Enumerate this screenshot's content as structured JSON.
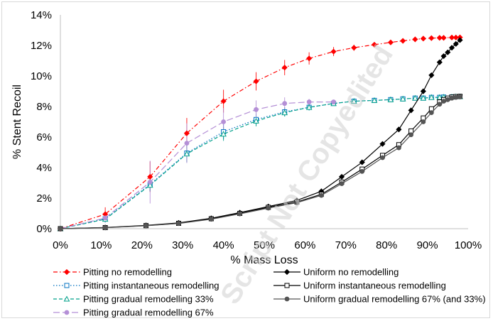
{
  "watermark": "Script Not Copyedited",
  "chart_data": {
    "type": "line",
    "title": "",
    "xlabel": "% Mass Loss",
    "ylabel": "% Stent Recoil",
    "xlim": [
      0,
      100
    ],
    "ylim": [
      0,
      14
    ],
    "x_ticks": [
      "0%",
      "10%",
      "20%",
      "30%",
      "40%",
      "50%",
      "60%",
      "70%",
      "80%",
      "90%",
      "100%"
    ],
    "y_ticks": [
      "0%",
      "2%",
      "4%",
      "6%",
      "8%",
      "10%",
      "12%",
      "14%"
    ],
    "grid": false,
    "legend_position": "bottom",
    "series": [
      {
        "name": "Pitting no remodelling",
        "color": "#ff0000",
        "dash": "dashdot",
        "marker": "diamond-filled",
        "x": [
          0,
          11,
          22,
          31,
          40,
          48,
          55,
          61,
          67,
          72,
          77,
          81,
          84,
          87,
          89,
          91,
          93,
          94,
          96,
          97,
          98
        ],
        "y": [
          0,
          0.95,
          3.4,
          6.25,
          8.35,
          9.65,
          10.55,
          11.15,
          11.6,
          11.85,
          12.05,
          12.2,
          12.3,
          12.4,
          12.45,
          12.48,
          12.5,
          12.5,
          12.52,
          12.52,
          12.53
        ],
        "error": [
          0,
          0.45,
          1.0,
          1.0,
          0.75,
          0.6,
          0.5,
          0.4,
          0.3,
          0.2,
          0.15,
          0.1,
          0.1,
          0.1,
          0.05,
          0.05,
          0.05,
          0.05,
          0.05,
          0.05,
          0.05
        ]
      },
      {
        "name": "Pitting instantaneous remodelling",
        "color": "#0070c0",
        "dash": "dotted",
        "marker": "square-open",
        "x": [
          0,
          11,
          22,
          31,
          40,
          48,
          55,
          61,
          67,
          72,
          77,
          81,
          84,
          87,
          89,
          91,
          93,
          94,
          96,
          97,
          98
        ],
        "y": [
          0,
          0.65,
          2.9,
          4.95,
          6.35,
          7.15,
          7.65,
          7.95,
          8.2,
          8.35,
          8.4,
          8.45,
          8.5,
          8.55,
          8.55,
          8.6,
          8.6,
          8.62,
          8.63,
          8.65,
          8.65
        ],
        "error": [
          0,
          0.25,
          0.45,
          0.6,
          0.5,
          0.4,
          0.3,
          0.2,
          0.15,
          0.1,
          0.05,
          0.05,
          0.05,
          0.05,
          0.05,
          0.05,
          0.05,
          0.05,
          0.05,
          0.05,
          0.05
        ]
      },
      {
        "name": "Pitting gradual remodelling 33%",
        "color": "#00a08a",
        "dash": "dashed",
        "marker": "triangle-open",
        "x": [
          0,
          11,
          22,
          31,
          40,
          48,
          55,
          61,
          67,
          72,
          77,
          81,
          84,
          87,
          89,
          91,
          93,
          94,
          96,
          97,
          98
        ],
        "y": [
          0,
          0.62,
          2.85,
          4.9,
          6.2,
          7.05,
          7.6,
          7.95,
          8.2,
          8.35,
          8.4,
          8.45,
          8.5,
          8.55,
          8.55,
          8.6,
          8.6,
          8.62,
          8.63,
          8.65,
          8.65
        ],
        "error": [
          0,
          0.2,
          0.4,
          0.55,
          0.45,
          0.35,
          0.25,
          0.2,
          0.15,
          0.1,
          0.05,
          0.05,
          0.05,
          0.05,
          0.05,
          0.05,
          0.05,
          0.05,
          0.05,
          0.05,
          0.05
        ]
      },
      {
        "name": "Pitting gradual remodelling 67%",
        "color": "#b48fd6",
        "dash": "longdash",
        "marker": "circle-filled",
        "x": [
          0,
          11,
          22,
          31,
          40,
          48,
          55,
          61,
          67
        ],
        "y": [
          0,
          0.7,
          3.05,
          5.6,
          7.0,
          7.8,
          8.2,
          8.3,
          8.3
        ],
        "error": [
          0,
          0.3,
          1.4,
          1.3,
          0.9,
          0.6,
          0.4,
          0.2,
          0.1
        ]
      },
      {
        "name": "Uniform no remodelling",
        "color": "#000000",
        "dash": "solid",
        "marker": "diamond-filled",
        "x": [
          0,
          11,
          21,
          29,
          37,
          44,
          51,
          58,
          64,
          69,
          74,
          79,
          83,
          86,
          89,
          91,
          93,
          94,
          95,
          96,
          97,
          98
        ],
        "y": [
          0,
          0.08,
          0.22,
          0.38,
          0.68,
          1.05,
          1.45,
          1.85,
          2.45,
          3.4,
          4.35,
          5.55,
          6.5,
          7.75,
          9.0,
          10.05,
          10.9,
          11.3,
          11.55,
          11.85,
          12.1,
          12.35
        ]
      },
      {
        "name": "Uniform instantaneous remodelling",
        "color": "#000000",
        "dash": "solid",
        "marker": "square-open",
        "x": [
          0,
          11,
          21,
          29,
          37,
          44,
          51,
          58,
          64,
          69,
          74,
          79,
          83,
          86,
          89,
          91,
          93,
          94,
          95,
          96,
          97,
          98
        ],
        "y": [
          0,
          0.07,
          0.2,
          0.35,
          0.65,
          1.0,
          1.4,
          1.75,
          2.25,
          3.05,
          3.9,
          4.8,
          5.5,
          6.4,
          7.25,
          7.85,
          8.3,
          8.45,
          8.55,
          8.62,
          8.65,
          8.67
        ]
      },
      {
        "name": "Uniform gradual remodelling 67% (and 33%)",
        "color": "#555555",
        "dash": "solid",
        "marker": "circle-filled",
        "x": [
          0,
          11,
          21,
          29,
          37,
          44,
          51,
          58,
          64,
          69,
          74,
          79,
          83,
          86,
          89,
          91,
          93,
          94,
          95,
          96,
          97,
          98
        ],
        "y": [
          0,
          0.06,
          0.19,
          0.34,
          0.62,
          0.97,
          1.35,
          1.7,
          2.18,
          2.95,
          3.75,
          4.65,
          5.3,
          6.15,
          7.0,
          7.6,
          8.15,
          8.35,
          8.45,
          8.55,
          8.6,
          8.63
        ]
      }
    ]
  }
}
